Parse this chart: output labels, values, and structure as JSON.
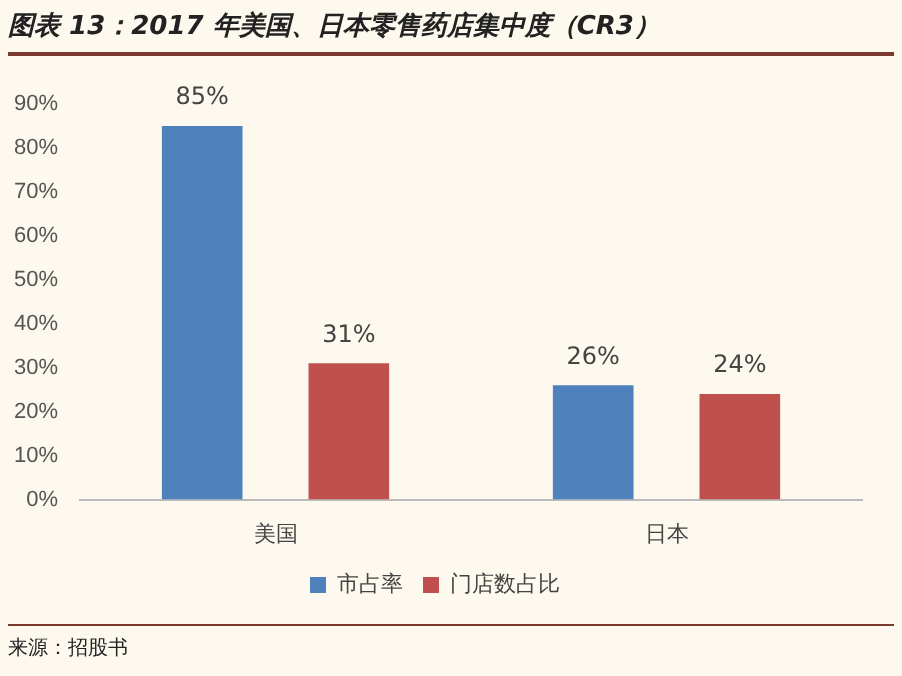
{
  "chart_data": {
    "type": "bar",
    "title": "图表 13：2017 年美国、日本零售药店集中度（CR3）",
    "categories": [
      "美国",
      "日本"
    ],
    "series": [
      {
        "name": "市占率",
        "color": "#4f81bd",
        "values": [
          85,
          26
        ],
        "value_labels": [
          "85%",
          "26%"
        ]
      },
      {
        "name": "门店数占比",
        "color": "#c0504d",
        "values": [
          31,
          24
        ],
        "value_labels": [
          "31%",
          "24%"
        ]
      }
    ],
    "ylim": [
      0,
      90
    ],
    "yticks": [
      {
        "value": 0,
        "label": "0%"
      },
      {
        "value": 10,
        "label": "10%"
      },
      {
        "value": 20,
        "label": "20%"
      },
      {
        "value": 30,
        "label": "30%"
      },
      {
        "value": 40,
        "label": "40%"
      },
      {
        "value": 50,
        "label": "50%"
      },
      {
        "value": 60,
        "label": "60%"
      },
      {
        "value": 70,
        "label": "70%"
      },
      {
        "value": 80,
        "label": "80%"
      },
      {
        "value": 90,
        "label": "90%"
      }
    ],
    "grid": false,
    "legend": "bottom",
    "annotations": [
      "来源：招股书"
    ]
  }
}
